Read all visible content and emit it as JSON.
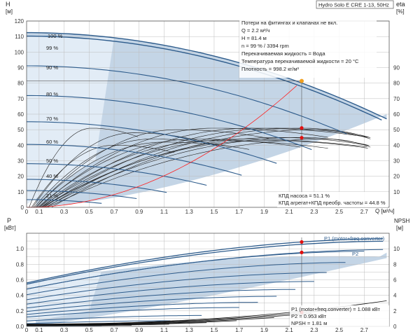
{
  "title_box": "Hydro Solo E CRE 1-13, 50Hz",
  "colors": {
    "envelope": "#c4d5e6",
    "light_region": "#e2ecf6",
    "speed_curve": "#2e5c8c",
    "eff_curve": "#222222",
    "system_curve": "#ff2020",
    "duty_marker": "#f0a020",
    "point_marker": "#e01010",
    "grid": "#bcbcbc"
  },
  "chart_data": [
    {
      "type": "line",
      "id": "qh",
      "y_unit_symbol": "H",
      "y_unit": "[м]",
      "y2_label": "eta",
      "y2_unit": "[%]",
      "xlim": [
        0,
        2.9
      ],
      "ylim": [
        0,
        120
      ],
      "y2lim": [
        0,
        100
      ],
      "grid": true,
      "xticks": [
        "0",
        "0.1",
        "0.3",
        "0.5",
        "0.7",
        "0.9",
        "1.1",
        "1.3",
        "1.5",
        "1.7",
        "1.9",
        "2.1",
        "2.3",
        "2.5",
        "2.7"
      ],
      "xtick_values": [
        0,
        0.1,
        0.3,
        0.5,
        0.7,
        0.9,
        1.1,
        1.3,
        1.5,
        1.7,
        1.9,
        2.1,
        2.3,
        2.5,
        2.7
      ],
      "xlabel": "Q [м³/ч]",
      "yticks": [
        "0",
        "10",
        "20",
        "30",
        "40",
        "50",
        "60",
        "70",
        "80",
        "90",
        "100",
        "110",
        "120"
      ],
      "y2ticks": [
        "10",
        "20",
        "30",
        "40",
        "50",
        "60",
        "70",
        "80",
        "90"
      ],
      "info_lines": [
        "Потери на фитингах и клапанах не вкл.",
        "Q = 2.2 м³/ч",
        "H = 81.4 м",
        "n = 99 % / 3394 rpm",
        "Перекачиваемая жидкость = Вода",
        "Температура перекачиваемой жидкости = 20 °C",
        "Плотность = 998.2 кг/м³"
      ],
      "eff_lines": [
        "КПД насоса = 51.1 %",
        "КПД агрегат+КПД преобр. частоты = 44.8 %"
      ],
      "speed_labels": [
        "100 %",
        "99 %",
        "90 %",
        "80 %",
        "70 %",
        "60 %",
        "50 %",
        "40 %",
        "21 %"
      ],
      "speeds": [
        1.0,
        0.99,
        0.9,
        0.8,
        0.7,
        0.6,
        0.5,
        0.4,
        0.31,
        0.21
      ],
      "head_curve": {
        "h0": 112.5,
        "q_max": 2.9
      },
      "system_curve": {
        "h_static": 0,
        "k": 16.8
      },
      "duty_point": {
        "q": 2.2,
        "h": 81.4
      },
      "eff_points": [
        {
          "q": 2.2,
          "eta": 51.1
        },
        {
          "q": 2.2,
          "eta": 44.8
        }
      ]
    },
    {
      "type": "line",
      "id": "power",
      "y_unit_symbol": "P",
      "y_unit": "[кВт]",
      "y2_label": "NPSH",
      "y2_unit": "[м]",
      "xlim": [
        0,
        2.9
      ],
      "ylim": [
        0,
        1.2
      ],
      "y2lim": [
        0,
        12
      ],
      "grid": true,
      "xticks": [
        "0",
        "0.1",
        "0.3",
        "0.5",
        "0.7",
        "0.9",
        "1.1",
        "1.3",
        "1.5",
        "1.7",
        "1.9",
        "2.1",
        "2.3",
        "2.5",
        "2.7"
      ],
      "yticks": [
        "0.0",
        "0.2",
        "0.4",
        "0.6",
        "0.8",
        "1.0"
      ],
      "y2ticks": [
        "0",
        "2",
        "4",
        "6",
        "8",
        "10"
      ],
      "series_labels": [
        "P1 (motor+freq.converter)",
        "P2"
      ],
      "info_lines": [
        "P1 (motor+freq.converter) = 1.088 кВт",
        "P2 = 0.953 кВт",
        "NPSH = 1.81 м"
      ],
      "points": [
        {
          "q": 2.2,
          "p": 1.088
        },
        {
          "q": 2.2,
          "p": 0.953
        },
        {
          "q": 2.2,
          "npsh": 1.81
        }
      ]
    }
  ]
}
